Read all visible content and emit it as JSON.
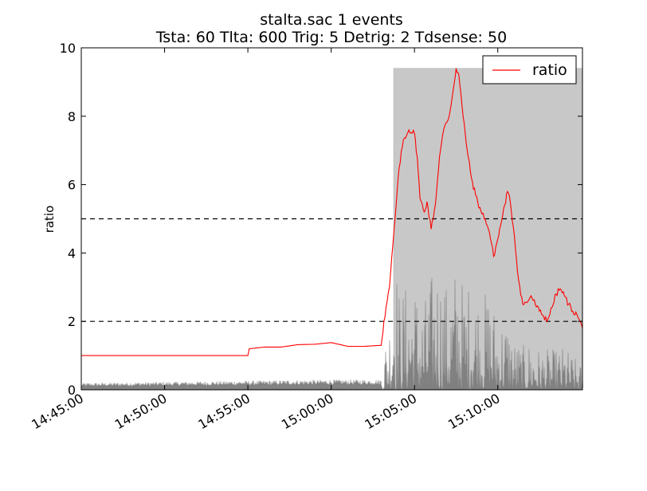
{
  "chart_data": {
    "type": "line",
    "title": "stalta.sac   1 events",
    "subtitle": "Tsta: 60  Tlta: 600  Trig: 5  Detrig: 2  Tdsense: 50",
    "xlabel": "",
    "ylabel": "ratio",
    "xlim": [
      "14:45:00",
      "15:15:05"
    ],
    "ylim": [
      0,
      10
    ],
    "x_ticks": [
      "14:45:00",
      "14:50:00",
      "14:55:00",
      "15:00:00",
      "15:05:00",
      "15:10:00"
    ],
    "y_ticks": [
      0,
      2,
      4,
      6,
      8,
      10
    ],
    "grid": false,
    "legend": {
      "position": "top-right",
      "entries": [
        "ratio"
      ]
    },
    "thresholds": [
      {
        "value": 5,
        "style": "dashed",
        "color": "#000000"
      },
      {
        "value": 2,
        "style": "dashed",
        "color": "#000000"
      }
    ],
    "event_span": {
      "start": "15:03:45",
      "end": "15:15:05",
      "level": 9.4,
      "color": "#c8c8c8"
    },
    "series": [
      {
        "name": "ratio",
        "color": "#ff0000",
        "points": [
          [
            "14:45:00",
            1.0
          ],
          [
            "14:55:00",
            1.0
          ],
          [
            "14:55:05",
            1.2
          ],
          [
            "14:56:00",
            1.25
          ],
          [
            "14:57:00",
            1.25
          ],
          [
            "14:58:00",
            1.32
          ],
          [
            "14:59:00",
            1.33
          ],
          [
            "15:00:00",
            1.38
          ],
          [
            "15:01:00",
            1.27
          ],
          [
            "15:02:00",
            1.27
          ],
          [
            "15:03:00",
            1.3
          ],
          [
            "15:03:10",
            2.0
          ],
          [
            "15:03:30",
            3.0
          ],
          [
            "15:03:50",
            5.0
          ],
          [
            "15:04:05",
            6.5
          ],
          [
            "15:04:20",
            7.3
          ],
          [
            "15:04:40",
            7.6
          ],
          [
            "15:05:00",
            7.5
          ],
          [
            "15:05:10",
            6.8
          ],
          [
            "15:05:20",
            5.6
          ],
          [
            "15:05:35",
            5.2
          ],
          [
            "15:05:45",
            5.5
          ],
          [
            "15:06:00",
            4.7
          ],
          [
            "15:06:15",
            5.4
          ],
          [
            "15:06:30",
            6.8
          ],
          [
            "15:06:45",
            7.6
          ],
          [
            "15:07:05",
            8.0
          ],
          [
            "15:07:20",
            8.8
          ],
          [
            "15:07:30",
            9.4
          ],
          [
            "15:07:40",
            9.2
          ],
          [
            "15:07:55",
            8.0
          ],
          [
            "15:08:10",
            7.0
          ],
          [
            "15:08:25",
            6.2
          ],
          [
            "15:08:40",
            5.7
          ],
          [
            "15:09:00",
            5.2
          ],
          [
            "15:09:15",
            5.0
          ],
          [
            "15:09:30",
            4.6
          ],
          [
            "15:09:45",
            3.9
          ],
          [
            "15:10:00",
            4.4
          ],
          [
            "15:10:10",
            4.8
          ],
          [
            "15:10:25",
            5.4
          ],
          [
            "15:10:35",
            5.8
          ],
          [
            "15:10:45",
            5.5
          ],
          [
            "15:11:00",
            4.5
          ],
          [
            "15:11:15",
            3.2
          ],
          [
            "15:11:30",
            2.5
          ],
          [
            "15:11:45",
            2.55
          ],
          [
            "15:12:00",
            2.75
          ],
          [
            "15:12:15",
            2.5
          ],
          [
            "15:12:30",
            2.3
          ],
          [
            "15:12:45",
            2.15
          ],
          [
            "15:13:00",
            2.05
          ],
          [
            "15:13:15",
            2.4
          ],
          [
            "15:13:30",
            2.8
          ],
          [
            "15:13:45",
            2.95
          ],
          [
            "15:14:00",
            2.75
          ],
          [
            "15:14:15",
            2.5
          ],
          [
            "15:14:30",
            2.3
          ],
          [
            "15:14:45",
            2.2
          ],
          [
            "15:15:05",
            1.8
          ]
        ]
      },
      {
        "name": "amplitude",
        "color": "#808080",
        "style": "filled-waveform",
        "envelope": [
          [
            "14:45:00",
            0.2
          ],
          [
            "15:00:00",
            0.3
          ],
          [
            "15:03:00",
            0.3
          ],
          [
            "15:03:05",
            1.0
          ],
          [
            "15:03:20",
            1.8
          ],
          [
            "15:03:35",
            2.5
          ],
          [
            "15:03:45",
            4.7
          ],
          [
            "15:04:05",
            3.0
          ],
          [
            "15:05:00",
            3.3
          ],
          [
            "15:05:30",
            2.5
          ],
          [
            "15:06:00",
            3.4
          ],
          [
            "15:06:15",
            4.0
          ],
          [
            "15:06:40",
            3.5
          ],
          [
            "15:07:00",
            3.0
          ],
          [
            "15:07:30",
            3.8
          ],
          [
            "15:08:00",
            3.1
          ],
          [
            "15:08:30",
            3.3
          ],
          [
            "15:09:00",
            2.8
          ],
          [
            "15:09:30",
            3.0
          ],
          [
            "15:10:00",
            2.2
          ],
          [
            "15:10:30",
            2.2
          ],
          [
            "15:11:00",
            1.5
          ],
          [
            "15:11:30",
            1.3
          ],
          [
            "15:12:00",
            1.5
          ],
          [
            "15:12:30",
            1.2
          ],
          [
            "15:13:00",
            1.2
          ],
          [
            "15:13:30",
            1.2
          ],
          [
            "15:14:00",
            1.3
          ],
          [
            "15:15:05",
            0.7
          ]
        ]
      }
    ]
  }
}
